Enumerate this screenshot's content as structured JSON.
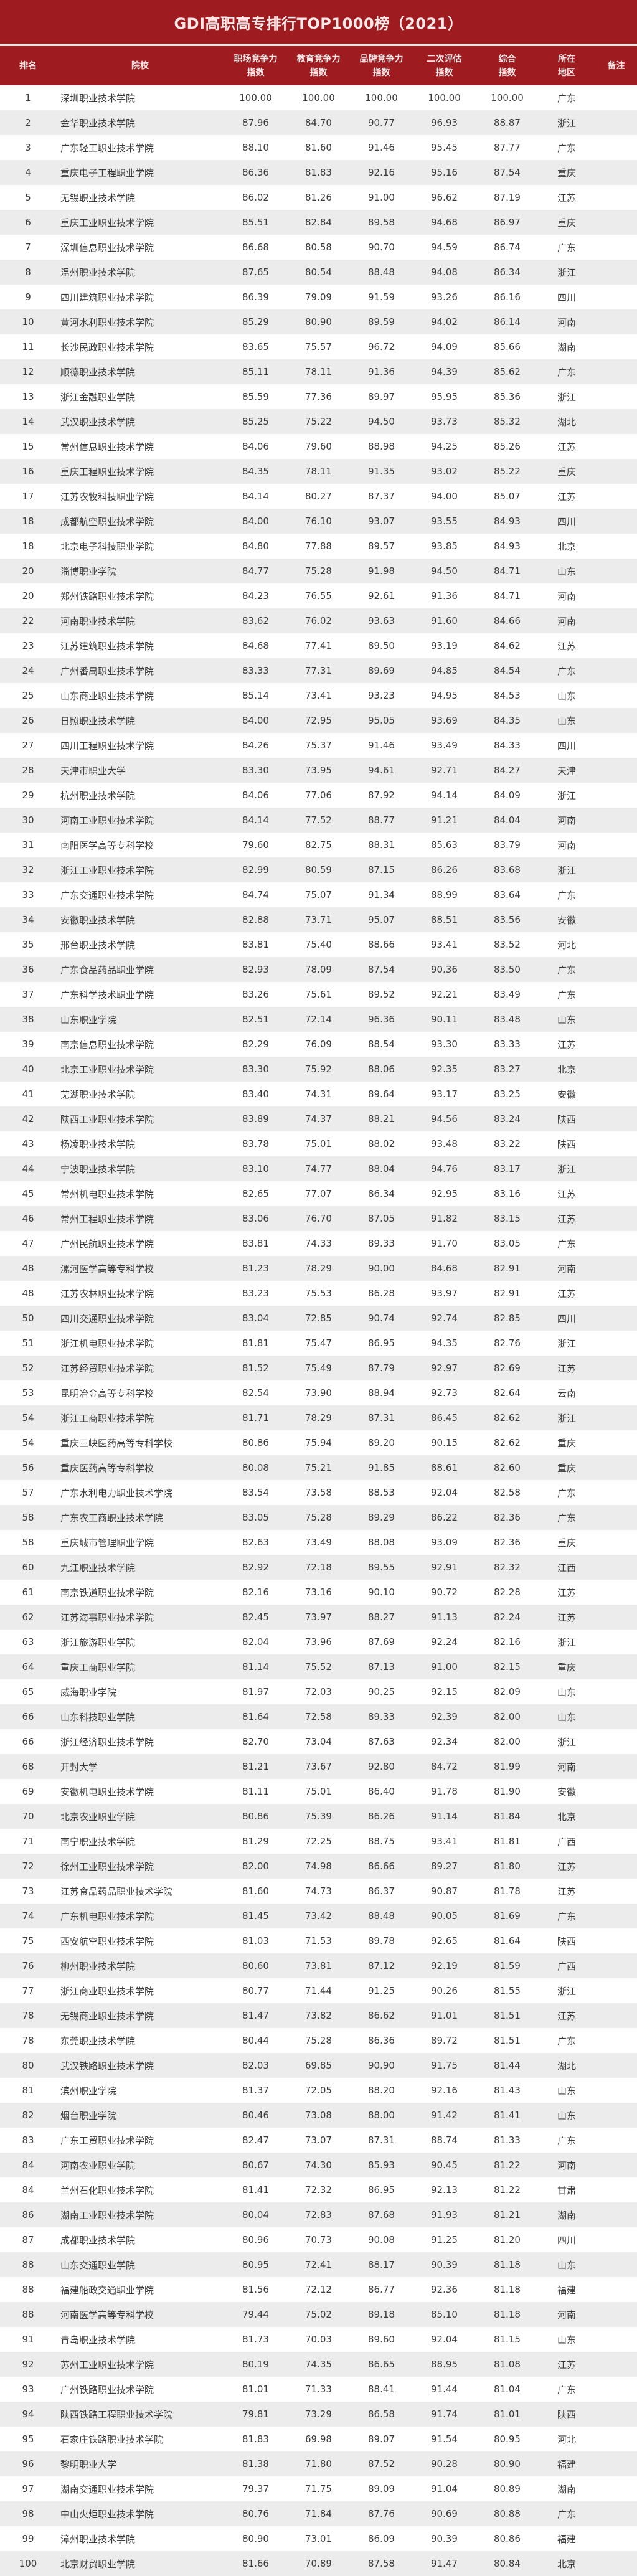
{
  "title": "GDI高职高专排行TOP1000榜（2021）",
  "headers": {
    "rank": "排名",
    "school": "院校",
    "career": [
      "职场竞争力",
      "指数"
    ],
    "education": [
      "教育竞争力",
      "指数"
    ],
    "brand": [
      "品牌竞争力",
      "指数"
    ],
    "secondary": [
      "二次评估",
      "指数"
    ],
    "overall": [
      "综合",
      "指数"
    ],
    "region": [
      "所在",
      "地区"
    ],
    "note": "备注"
  },
  "colors": {
    "header_bg": "#9e1b1f",
    "header_text": "#fbe9e9",
    "stripe": "#ececec"
  },
  "rows": [
    [
      "1",
      "深圳职业技术学院",
      "100.00",
      "100.00",
      "100.00",
      "100.00",
      "100.00",
      "广东"
    ],
    [
      "2",
      "金华职业技术学院",
      "87.96",
      "84.70",
      "90.77",
      "96.93",
      "88.87",
      "浙江"
    ],
    [
      "3",
      "广东轻工职业技术学院",
      "88.10",
      "81.60",
      "91.46",
      "95.45",
      "87.77",
      "广东"
    ],
    [
      "4",
      "重庆电子工程职业学院",
      "86.36",
      "81.83",
      "92.16",
      "95.16",
      "87.54",
      "重庆"
    ],
    [
      "5",
      "无锡职业技术学院",
      "86.02",
      "81.26",
      "91.00",
      "96.62",
      "87.19",
      "江苏"
    ],
    [
      "6",
      "重庆工业职业技术学院",
      "85.51",
      "82.84",
      "89.58",
      "94.68",
      "86.97",
      "重庆"
    ],
    [
      "7",
      "深圳信息职业技术学院",
      "86.68",
      "80.58",
      "90.70",
      "94.59",
      "86.74",
      "广东"
    ],
    [
      "8",
      "温州职业技术学院",
      "87.65",
      "80.54",
      "88.48",
      "94.08",
      "86.34",
      "浙江"
    ],
    [
      "9",
      "四川建筑职业技术学院",
      "86.39",
      "79.09",
      "91.59",
      "93.26",
      "86.16",
      "四川"
    ],
    [
      "10",
      "黄河水利职业技术学院",
      "85.29",
      "80.90",
      "89.59",
      "94.02",
      "86.14",
      "河南"
    ],
    [
      "11",
      "长沙民政职业技术学院",
      "83.65",
      "75.57",
      "96.72",
      "94.09",
      "85.66",
      "湖南"
    ],
    [
      "12",
      "顺德职业技术学院",
      "85.11",
      "78.11",
      "91.36",
      "94.39",
      "85.62",
      "广东"
    ],
    [
      "13",
      "浙江金融职业学院",
      "85.59",
      "77.36",
      "89.97",
      "95.95",
      "85.36",
      "浙江"
    ],
    [
      "14",
      "武汉职业技术学院",
      "85.25",
      "75.22",
      "94.50",
      "93.73",
      "85.32",
      "湖北"
    ],
    [
      "15",
      "常州信息职业技术学院",
      "84.06",
      "79.60",
      "88.98",
      "94.25",
      "85.26",
      "江苏"
    ],
    [
      "16",
      "重庆工程职业技术学院",
      "84.35",
      "78.11",
      "91.35",
      "93.02",
      "85.22",
      "重庆"
    ],
    [
      "17",
      "江苏农牧科技职业学院",
      "84.14",
      "80.27",
      "87.37",
      "94.00",
      "85.07",
      "江苏"
    ],
    [
      "18",
      "成都航空职业技术学院",
      "84.00",
      "76.10",
      "93.07",
      "93.55",
      "84.93",
      "四川"
    ],
    [
      "18",
      "北京电子科技职业学院",
      "84.80",
      "77.88",
      "89.57",
      "93.85",
      "84.93",
      "北京"
    ],
    [
      "20",
      "淄博职业学院",
      "84.77",
      "75.28",
      "91.98",
      "94.50",
      "84.71",
      "山东"
    ],
    [
      "20",
      "郑州铁路职业技术学院",
      "84.23",
      "76.55",
      "92.61",
      "91.36",
      "84.71",
      "河南"
    ],
    [
      "22",
      "河南职业技术学院",
      "83.62",
      "76.02",
      "93.63",
      "91.60",
      "84.66",
      "河南"
    ],
    [
      "23",
      "江苏建筑职业技术学院",
      "84.68",
      "77.41",
      "89.50",
      "93.19",
      "84.62",
      "江苏"
    ],
    [
      "24",
      "广州番禺职业技术学院",
      "83.33",
      "77.31",
      "89.69",
      "94.85",
      "84.54",
      "广东"
    ],
    [
      "25",
      "山东商业职业技术学院",
      "85.14",
      "73.41",
      "93.23",
      "94.95",
      "84.53",
      "山东"
    ],
    [
      "26",
      "日照职业技术学院",
      "84.00",
      "72.95",
      "95.05",
      "93.69",
      "84.35",
      "山东"
    ],
    [
      "27",
      "四川工程职业技术学院",
      "84.26",
      "75.37",
      "91.46",
      "93.49",
      "84.33",
      "四川"
    ],
    [
      "28",
      "天津市职业大学",
      "83.30",
      "73.95",
      "94.61",
      "92.71",
      "84.27",
      "天津"
    ],
    [
      "29",
      "杭州职业技术学院",
      "84.06",
      "77.06",
      "87.92",
      "94.14",
      "84.09",
      "浙江"
    ],
    [
      "30",
      "河南工业职业技术学院",
      "84.14",
      "77.52",
      "88.77",
      "91.21",
      "84.04",
      "河南"
    ],
    [
      "31",
      "南阳医学高等专科学校",
      "79.60",
      "82.75",
      "88.31",
      "85.63",
      "83.79",
      "河南"
    ],
    [
      "32",
      "浙江工业职业技术学院",
      "82.99",
      "80.59",
      "87.15",
      "86.26",
      "83.68",
      "浙江"
    ],
    [
      "33",
      "广东交通职业技术学院",
      "84.74",
      "75.07",
      "91.34",
      "88.99",
      "83.64",
      "广东"
    ],
    [
      "34",
      "安徽职业技术学院",
      "82.88",
      "73.71",
      "95.07",
      "88.51",
      "83.56",
      "安徽"
    ],
    [
      "35",
      "邢台职业技术学院",
      "83.81",
      "75.40",
      "88.66",
      "93.41",
      "83.52",
      "河北"
    ],
    [
      "36",
      "广东食品药品职业学院",
      "82.93",
      "78.09",
      "87.54",
      "90.36",
      "83.50",
      "广东"
    ],
    [
      "37",
      "广东科学技术职业学院",
      "83.26",
      "75.61",
      "89.52",
      "92.21",
      "83.49",
      "广东"
    ],
    [
      "38",
      "山东职业学院",
      "82.51",
      "72.14",
      "96.36",
      "90.11",
      "83.48",
      "山东"
    ],
    [
      "39",
      "南京信息职业技术学院",
      "82.29",
      "76.09",
      "88.54",
      "93.30",
      "83.33",
      "江苏"
    ],
    [
      "40",
      "北京工业职业技术学院",
      "83.30",
      "75.92",
      "88.06",
      "92.35",
      "83.27",
      "北京"
    ],
    [
      "41",
      "芜湖职业技术学院",
      "83.40",
      "74.31",
      "89.64",
      "93.17",
      "83.25",
      "安徽"
    ],
    [
      "42",
      "陕西工业职业技术学院",
      "83.89",
      "74.37",
      "88.21",
      "94.56",
      "83.24",
      "陕西"
    ],
    [
      "43",
      "杨凌职业技术学院",
      "83.78",
      "75.01",
      "88.02",
      "93.48",
      "83.22",
      "陕西"
    ],
    [
      "44",
      "宁波职业技术学院",
      "83.10",
      "74.77",
      "88.04",
      "94.76",
      "83.17",
      "浙江"
    ],
    [
      "45",
      "常州机电职业技术学院",
      "82.65",
      "77.07",
      "86.34",
      "92.95",
      "83.16",
      "江苏"
    ],
    [
      "46",
      "常州工程职业技术学院",
      "83.06",
      "76.70",
      "87.05",
      "91.82",
      "83.15",
      "江苏"
    ],
    [
      "47",
      "广州民航职业技术学院",
      "83.81",
      "74.33",
      "89.33",
      "91.70",
      "83.05",
      "广东"
    ],
    [
      "48",
      "漯河医学高等专科学校",
      "81.23",
      "78.29",
      "90.00",
      "84.68",
      "82.91",
      "河南"
    ],
    [
      "48",
      "江苏农林职业技术学院",
      "83.23",
      "75.53",
      "86.28",
      "93.97",
      "82.91",
      "江苏"
    ],
    [
      "50",
      "四川交通职业技术学院",
      "83.04",
      "72.85",
      "90.74",
      "92.74",
      "82.85",
      "四川"
    ],
    [
      "51",
      "浙江机电职业技术学院",
      "81.81",
      "75.47",
      "86.95",
      "94.35",
      "82.76",
      "浙江"
    ],
    [
      "52",
      "江苏经贸职业技术学院",
      "81.52",
      "75.49",
      "87.79",
      "92.97",
      "82.69",
      "江苏"
    ],
    [
      "53",
      "昆明冶金高等专科学校",
      "82.54",
      "73.90",
      "88.94",
      "92.73",
      "82.64",
      "云南"
    ],
    [
      "54",
      "浙江工商职业技术学院",
      "81.71",
      "78.29",
      "87.31",
      "86.45",
      "82.62",
      "浙江"
    ],
    [
      "54",
      "重庆三峡医药高等专科学校",
      "80.86",
      "75.94",
      "89.20",
      "90.15",
      "82.62",
      "重庆"
    ],
    [
      "56",
      "重庆医药高等专科学校",
      "80.08",
      "75.21",
      "91.85",
      "88.61",
      "82.60",
      "重庆"
    ],
    [
      "57",
      "广东水利电力职业技术学院",
      "83.54",
      "73.58",
      "88.53",
      "92.04",
      "82.58",
      "广东"
    ],
    [
      "58",
      "广东农工商职业技术学院",
      "83.05",
      "75.28",
      "89.29",
      "86.22",
      "82.36",
      "广东"
    ],
    [
      "58",
      "重庆城市管理职业学院",
      "82.63",
      "73.49",
      "88.08",
      "93.09",
      "82.36",
      "重庆"
    ],
    [
      "60",
      "九江职业技术学院",
      "82.92",
      "72.18",
      "89.55",
      "92.91",
      "82.32",
      "江西"
    ],
    [
      "61",
      "南京铁道职业技术学院",
      "82.16",
      "73.16",
      "90.10",
      "90.72",
      "82.28",
      "江苏"
    ],
    [
      "62",
      "江苏海事职业技术学院",
      "82.45",
      "73.97",
      "88.27",
      "91.13",
      "82.24",
      "江苏"
    ],
    [
      "63",
      "浙江旅游职业学院",
      "82.04",
      "73.96",
      "87.69",
      "92.24",
      "82.16",
      "浙江"
    ],
    [
      "64",
      "重庆工商职业学院",
      "81.14",
      "75.52",
      "87.13",
      "91.00",
      "82.15",
      "重庆"
    ],
    [
      "65",
      "威海职业学院",
      "81.97",
      "72.03",
      "90.25",
      "92.15",
      "82.09",
      "山东"
    ],
    [
      "66",
      "山东科技职业学院",
      "81.64",
      "72.58",
      "89.33",
      "92.39",
      "82.00",
      "山东"
    ],
    [
      "66",
      "浙江经济职业技术学院",
      "82.70",
      "73.04",
      "87.63",
      "92.34",
      "82.00",
      "浙江"
    ],
    [
      "68",
      "开封大学",
      "81.21",
      "73.67",
      "92.80",
      "84.72",
      "81.99",
      "河南"
    ],
    [
      "69",
      "安徽机电职业技术学院",
      "81.11",
      "75.01",
      "86.40",
      "91.78",
      "81.90",
      "安徽"
    ],
    [
      "70",
      "北京农业职业学院",
      "80.86",
      "75.39",
      "86.26",
      "91.14",
      "81.84",
      "北京"
    ],
    [
      "71",
      "南宁职业技术学院",
      "81.29",
      "72.25",
      "88.75",
      "93.41",
      "81.81",
      "广西"
    ],
    [
      "72",
      "徐州工业职业技术学院",
      "82.00",
      "74.98",
      "86.66",
      "89.27",
      "81.80",
      "江苏"
    ],
    [
      "73",
      "江苏食品药品职业技术学院",
      "81.60",
      "74.73",
      "86.37",
      "90.87",
      "81.78",
      "江苏"
    ],
    [
      "74",
      "广东机电职业技术学院",
      "81.45",
      "73.42",
      "88.48",
      "90.05",
      "81.69",
      "广东"
    ],
    [
      "75",
      "西安航空职业技术学院",
      "81.03",
      "71.53",
      "89.78",
      "92.65",
      "81.64",
      "陕西"
    ],
    [
      "76",
      "柳州职业技术学院",
      "80.60",
      "73.81",
      "87.12",
      "92.19",
      "81.59",
      "广西"
    ],
    [
      "77",
      "浙江商业职业技术学院",
      "80.77",
      "71.44",
      "91.25",
      "90.26",
      "81.55",
      "浙江"
    ],
    [
      "78",
      "无锡商业职业技术学院",
      "81.47",
      "73.82",
      "86.62",
      "91.01",
      "81.51",
      "江苏"
    ],
    [
      "78",
      "东莞职业技术学院",
      "80.44",
      "75.28",
      "86.36",
      "89.72",
      "81.51",
      "广东"
    ],
    [
      "80",
      "武汉铁路职业技术学院",
      "82.03",
      "69.85",
      "90.90",
      "91.75",
      "81.44",
      "湖北"
    ],
    [
      "81",
      "滨州职业学院",
      "81.37",
      "72.05",
      "88.20",
      "92.16",
      "81.43",
      "山东"
    ],
    [
      "82",
      "烟台职业学院",
      "80.46",
      "73.08",
      "88.00",
      "91.42",
      "81.41",
      "山东"
    ],
    [
      "83",
      "广东工贸职业技术学院",
      "82.47",
      "73.07",
      "87.31",
      "88.74",
      "81.33",
      "广东"
    ],
    [
      "84",
      "河南农业职业学院",
      "80.67",
      "74.30",
      "85.93",
      "90.45",
      "81.22",
      "河南"
    ],
    [
      "84",
      "兰州石化职业技术学院",
      "81.41",
      "72.32",
      "86.95",
      "92.13",
      "81.22",
      "甘肃"
    ],
    [
      "86",
      "湖南工业职业技术学院",
      "80.04",
      "72.83",
      "87.68",
      "91.93",
      "81.21",
      "湖南"
    ],
    [
      "87",
      "成都职业技术学院",
      "80.96",
      "70.73",
      "90.08",
      "91.25",
      "81.20",
      "四川"
    ],
    [
      "88",
      "山东交通职业学院",
      "80.95",
      "72.41",
      "88.17",
      "90.39",
      "81.18",
      "山东"
    ],
    [
      "88",
      "福建船政交通职业学院",
      "81.56",
      "72.12",
      "86.77",
      "92.36",
      "81.18",
      "福建"
    ],
    [
      "88",
      "河南医学高等专科学校",
      "79.44",
      "75.02",
      "89.18",
      "85.10",
      "81.18",
      "河南"
    ],
    [
      "91",
      "青岛职业技术学院",
      "81.73",
      "70.03",
      "89.60",
      "92.04",
      "81.15",
      "山东"
    ],
    [
      "92",
      "苏州工业职业技术学院",
      "80.19",
      "74.35",
      "86.65",
      "88.95",
      "81.08",
      "江苏"
    ],
    [
      "93",
      "广州铁路职业技术学院",
      "81.01",
      "71.33",
      "88.41",
      "91.44",
      "81.04",
      "广东"
    ],
    [
      "94",
      "陕西铁路工程职业技术学院",
      "79.81",
      "73.29",
      "86.58",
      "91.74",
      "81.01",
      "陕西"
    ],
    [
      "95",
      "石家庄铁路职业技术学院",
      "81.83",
      "69.98",
      "89.07",
      "91.54",
      "80.95",
      "河北"
    ],
    [
      "96",
      "黎明职业大学",
      "81.38",
      "71.80",
      "87.52",
      "90.28",
      "80.90",
      "福建"
    ],
    [
      "97",
      "湖南交通职业技术学院",
      "79.37",
      "71.75",
      "89.09",
      "91.04",
      "80.89",
      "湖南"
    ],
    [
      "98",
      "中山火炬职业技术学院",
      "80.76",
      "71.84",
      "87.76",
      "90.69",
      "80.88",
      "广东"
    ],
    [
      "99",
      "漳州职业技术学院",
      "80.90",
      "73.01",
      "86.09",
      "90.39",
      "80.86",
      "福建"
    ],
    [
      "100",
      "北京财贸职业学院",
      "81.66",
      "70.89",
      "87.58",
      "91.47",
      "80.84",
      "北京"
    ]
  ]
}
